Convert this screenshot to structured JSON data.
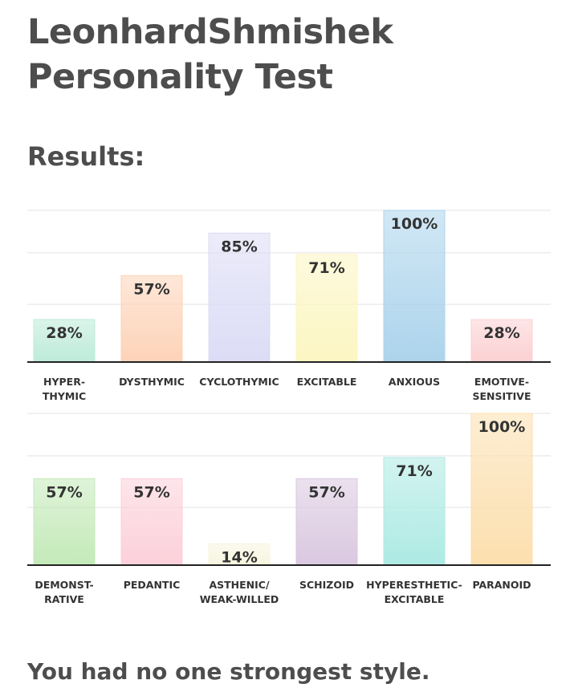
{
  "page": {
    "title_line1": "LeonhardShmishek",
    "title_line2": "Personality Test",
    "results_heading": "Results:",
    "footer": "You had no one strongest style."
  },
  "chart_data": [
    {
      "type": "bar",
      "ylim": [
        0,
        100
      ],
      "grid": true,
      "bars": [
        {
          "label": [
            "HYPER-",
            "THYMIC"
          ],
          "value": 28,
          "display": "28%",
          "color": "#bdebd9"
        },
        {
          "label": [
            "DYSTHYMIC"
          ],
          "value": 57,
          "display": "57%",
          "color": "#fdd3b8"
        },
        {
          "label": [
            "CYCLOTHYMIC"
          ],
          "value": 85,
          "display": "85%",
          "color": "#dcdcf6"
        },
        {
          "label": [
            "EXCITABLE"
          ],
          "value": 71,
          "display": "71%",
          "color": "#fcf6c2"
        },
        {
          "label": [
            "ANXIOUS"
          ],
          "value": 100,
          "display": "100%",
          "color": "#acd4ec"
        },
        {
          "label": [
            "EMOTIVE-",
            "SENSITIVE"
          ],
          "value": 28,
          "display": "28%",
          "color": "#fcd0d2"
        }
      ]
    },
    {
      "type": "bar",
      "ylim": [
        0,
        100
      ],
      "grid": true,
      "bars": [
        {
          "label": [
            "DEMONST-",
            "RATIVE"
          ],
          "value": 57,
          "display": "57%",
          "color": "#c4eab9"
        },
        {
          "label": [
            "PEDANTIC"
          ],
          "value": 57,
          "display": "57%",
          "color": "#fcd0da"
        },
        {
          "label": [
            "ASTHENIC/",
            "WEAK-WILLED"
          ],
          "value": 14,
          "display": "14%",
          "color": "#f7f5df"
        },
        {
          "label": [
            "SCHIZOID"
          ],
          "value": 57,
          "display": "57%",
          "color": "#dac8e0"
        },
        {
          "label": [
            "HYPERESTHETIC-",
            "EXCITABLE"
          ],
          "value": 71,
          "display": "71%",
          "color": "#aeeae4"
        },
        {
          "label": [
            "PARANOID"
          ],
          "value": 100,
          "display": "100%",
          "color": "#fcdfae"
        }
      ]
    }
  ]
}
